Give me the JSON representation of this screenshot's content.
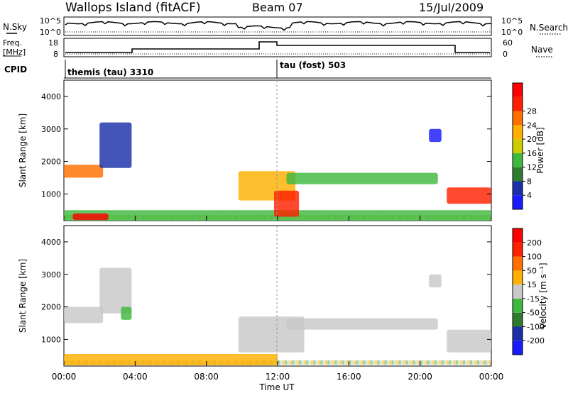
{
  "header": {
    "station": "Wallops Island (fitACF)",
    "beam": "Beam 07",
    "date": "15/Jul/2009"
  },
  "noise_panel": {
    "left_label": "N.Sky",
    "right_label": "N.Search",
    "ticks_left": [
      "10^5",
      "10^0"
    ],
    "ticks_right": [
      "10^5",
      "10^0"
    ]
  },
  "freq_panel": {
    "left_label_1": "Freq.",
    "left_label_2": "[MHz]",
    "right_label": "Nave",
    "ticks_left": [
      "18",
      "8"
    ],
    "ticks_right": [
      "60",
      "0"
    ]
  },
  "cpid_panel": {
    "label": "CPID",
    "segments": [
      {
        "text": "themis (tau) 3310",
        "start_hour": 0
      },
      {
        "text": "tau (fost) 503",
        "start_hour": 12
      }
    ]
  },
  "colors": {
    "power_scale": [
      "#1a1aff",
      "#1a2fa8",
      "#2e7a2e",
      "#3fb83f",
      "#cccc00",
      "#ffb000",
      "#ff7000",
      "#ff2000",
      "#ff0000"
    ],
    "velocity_scale": [
      "#1a1aff",
      "#1a2fa8",
      "#2e7a2e",
      "#3fb83f",
      "#c8c8c8",
      "#ffb000",
      "#ff7000",
      "#ff2000",
      "#ff0000"
    ]
  },
  "chart_data": [
    {
      "type": "heatmap",
      "panel": "power",
      "ylabel": "Slant Range [km]",
      "ylim": [
        180,
        4500
      ],
      "yticks": [
        "1000",
        "2000",
        "3000",
        "4000"
      ],
      "xlim_hours": [
        0,
        24
      ],
      "colorbar_label": "Power [dB]",
      "colorbar_ticks": [
        "4",
        "8",
        "12",
        "16",
        "20",
        "24",
        "28"
      ],
      "features": [
        {
          "t0": 0.0,
          "t1": 24.0,
          "r0": 180,
          "r1": 500,
          "level": 3
        },
        {
          "t0": 0.0,
          "t1": 2.2,
          "r0": 1500,
          "r1": 1900,
          "level": 6
        },
        {
          "t0": 2.0,
          "t1": 3.8,
          "r0": 1800,
          "r1": 3200,
          "level": 1
        },
        {
          "t0": 0.5,
          "t1": 2.5,
          "r0": 200,
          "r1": 400,
          "level": 8
        },
        {
          "t0": 9.8,
          "t1": 13.0,
          "r0": 800,
          "r1": 1700,
          "level": 5
        },
        {
          "t0": 11.8,
          "t1": 13.2,
          "r0": 300,
          "r1": 1100,
          "level": 7
        },
        {
          "t0": 12.5,
          "t1": 21.0,
          "r0": 1300,
          "r1": 1650,
          "level": 3
        },
        {
          "t0": 20.5,
          "t1": 21.2,
          "r0": 2600,
          "r1": 3000,
          "level": 0
        },
        {
          "t0": 21.5,
          "t1": 24.0,
          "r0": 700,
          "r1": 1200,
          "level": 7
        }
      ]
    },
    {
      "type": "heatmap",
      "panel": "velocity",
      "ylabel": "Slant Range [km]",
      "ylim": [
        180,
        4500
      ],
      "yticks": [
        "1000",
        "2000",
        "3000",
        "4000"
      ],
      "xlim_hours": [
        0,
        24
      ],
      "xlabel": "Time UT",
      "xticks": [
        "00:00",
        "04:00",
        "08:00",
        "12:00",
        "16:00",
        "20:00",
        "00:00"
      ],
      "colorbar_label": "Velocity [m s⁻¹]",
      "colorbar_ticks": [
        "200",
        "100",
        "50",
        "15",
        "-15",
        "-50",
        "-100",
        "-200"
      ],
      "features": [
        {
          "t0": 0.0,
          "t1": 2.2,
          "r0": 1500,
          "r1": 2000,
          "level": 4
        },
        {
          "t0": 2.0,
          "t1": 3.8,
          "r0": 1800,
          "r1": 3200,
          "level": 4
        },
        {
          "t0": 3.2,
          "t1": 3.8,
          "r0": 1600,
          "r1": 2000,
          "level": 3
        },
        {
          "t0": 0.0,
          "t1": 12.0,
          "r0": 200,
          "r1": 550,
          "level": 5
        },
        {
          "t0": 9.8,
          "t1": 13.5,
          "r0": 600,
          "r1": 1700,
          "level": 4
        },
        {
          "t0": 12.5,
          "t1": 21.0,
          "r0": 1300,
          "r1": 1650,
          "level": 4
        },
        {
          "t0": 20.5,
          "t1": 21.2,
          "r0": 2600,
          "r1": 3000,
          "level": 4
        },
        {
          "t0": 21.5,
          "t1": 24.0,
          "r0": 600,
          "r1": 1300,
          "level": 4
        }
      ]
    }
  ]
}
